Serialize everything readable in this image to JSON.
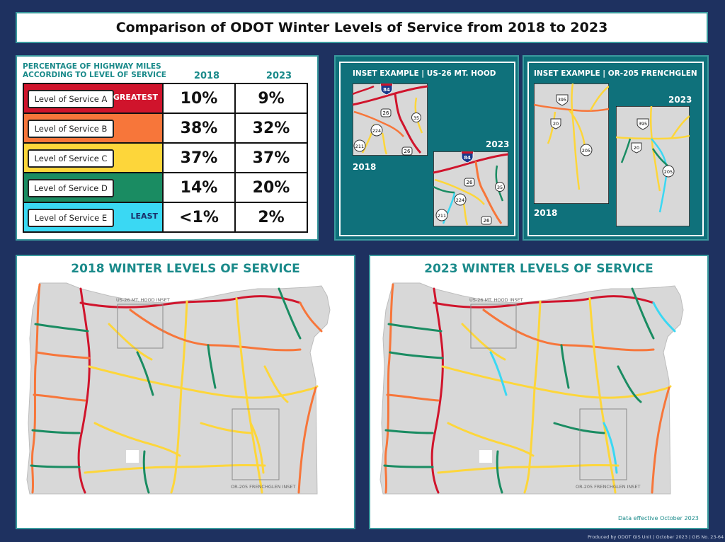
{
  "title": "Comparison of ODOT Winter Levels of Service from 2018 to 2023",
  "table": {
    "header_line1": "PERCENTAGE OF HIGHWAY MILES",
    "header_line2": "ACCORDING TO LEVEL OF SERVICE",
    "col_2018": "2018",
    "col_2023": "2023",
    "rows": [
      {
        "label": "Level of Service A",
        "tag": "GREATEST",
        "color": "#d0142c",
        "tag_color": "#ffffff",
        "v2018": "10%",
        "v2023": "9%"
      },
      {
        "label": "Level of Service B",
        "tag": "",
        "color": "#f7763a",
        "tag_color": "#000000",
        "v2018": "38%",
        "v2023": "32%"
      },
      {
        "label": "Level of Service C",
        "tag": "",
        "color": "#fdd63a",
        "tag_color": "#000000",
        "v2018": "37%",
        "v2023": "37%"
      },
      {
        "label": "Level of Service D",
        "tag": "",
        "color": "#1a8c62",
        "tag_color": "#000000",
        "v2018": "14%",
        "v2023": "20%"
      },
      {
        "label": "Level of Service E",
        "tag": "LEAST",
        "color": "#3ad8f3",
        "tag_color": "#1a2f6a",
        "v2018": "<1%",
        "v2023": "2%"
      }
    ]
  },
  "inset_hood": {
    "title": "INSET EXAMPLE | US-26 MT. HOOD",
    "year_a": "2018",
    "year_b": "2023",
    "shields": {
      "i84": "84",
      "us26": "26",
      "or35": "35",
      "or224": "224",
      "or211": "211",
      "us26b": "26"
    }
  },
  "inset_frenchglen": {
    "title": "INSET EXAMPLE | OR-205 FRENCHGLEN",
    "year_a": "2018",
    "year_b": "2023",
    "shields": {
      "us395": "395",
      "us20": "20",
      "or205": "205"
    }
  },
  "map_2018": {
    "title": "2018 WINTER LEVELS OF SERVICE",
    "inset_label_1": "US-26 MT. HOOD INSET",
    "inset_label_2": "OR-205 FRENCHGLEN INSET"
  },
  "map_2023": {
    "title": "2023 WINTER LEVELS OF SERVICE",
    "inset_label_1": "US-26 MT. HOOD INSET",
    "inset_label_2": "OR-205 FRENCHGLEN INSET",
    "effective": "Data effective October 2023"
  },
  "credit": "Produced by ODOT GIS Unit | October 2023 | GIS No. 23-64"
}
